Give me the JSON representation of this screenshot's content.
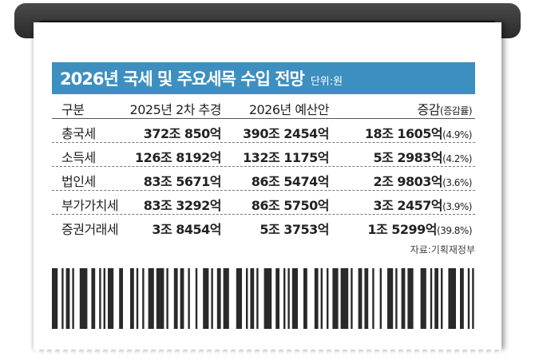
{
  "title": "2026년 국세 및 주요세목 수입 전망",
  "unit": "단위:원",
  "source": "자료:기획재정부",
  "colors": {
    "header": "#3d8fc0",
    "slot": "#333333"
  },
  "chart_data": {
    "type": "table",
    "columns": [
      "구분",
      "2025년 2차 추경",
      "2026년 예산안",
      "증감",
      "(증감률)"
    ],
    "rows": [
      {
        "label": "총국세",
        "v2025": "372조 850억",
        "v2026": "390조 2454억",
        "change": "18조 1605억",
        "rate": "(4.9%)"
      },
      {
        "label": "소득세",
        "v2025": "126조 8192억",
        "v2026": "132조 1175억",
        "change": "5조 2983억",
        "rate": "(4.2%)"
      },
      {
        "label": "법인세",
        "v2025": "83조 5671억",
        "v2026": "86조 5474억",
        "change": "2조 9803억",
        "rate": "(3.6%)"
      },
      {
        "label": "부가가치세",
        "v2025": "83조 3292억",
        "v2026": "86조 5750억",
        "change": "3조 2457억",
        "rate": "(3.9%)"
      },
      {
        "label": "증권거래세",
        "v2025": "3조 8454억",
        "v2026": "5조 3753억",
        "change": "1조 5299억",
        "rate": "(39.8%)"
      }
    ]
  }
}
